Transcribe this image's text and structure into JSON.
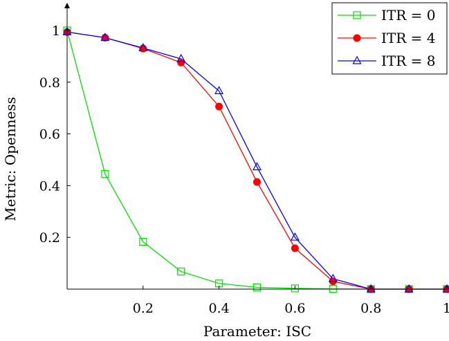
{
  "chart_data": {
    "type": "line",
    "title": "",
    "xlabel": "Parameter: ISC",
    "ylabel": "Metric: Openness",
    "xlim": [
      0,
      1
    ],
    "ylim": [
      0,
      1
    ],
    "x_ticks": [
      "0.2",
      "0.4",
      "0.6",
      "0.8",
      "1"
    ],
    "y_ticks": [
      "0.2",
      "0.4",
      "0.6",
      "0.8",
      "1"
    ],
    "grid": false,
    "legend_position": "top-right",
    "x": [
      0,
      0.1,
      0.2,
      0.3,
      0.4,
      0.5,
      0.6,
      0.7,
      0.8,
      0.9,
      1.0
    ],
    "series": [
      {
        "name": "ITR = 0",
        "color": "#00e000",
        "marker": "square-open",
        "values": [
          1.0,
          0.445,
          0.183,
          0.068,
          0.022,
          0.007,
          0.003,
          0.001,
          0.0,
          0.0,
          0.0
        ]
      },
      {
        "name": "ITR = 4",
        "color": "#ff0000",
        "marker": "circle-filled",
        "values": [
          0.994,
          0.972,
          0.93,
          0.876,
          0.706,
          0.414,
          0.158,
          0.03,
          0.0,
          0.0,
          0.0
        ]
      },
      {
        "name": "ITR = 8",
        "color": "#0000ff",
        "marker": "triangle-open",
        "values": [
          0.994,
          0.972,
          0.932,
          0.89,
          0.766,
          0.472,
          0.2,
          0.04,
          0.0,
          0.0,
          0.0
        ]
      }
    ]
  }
}
